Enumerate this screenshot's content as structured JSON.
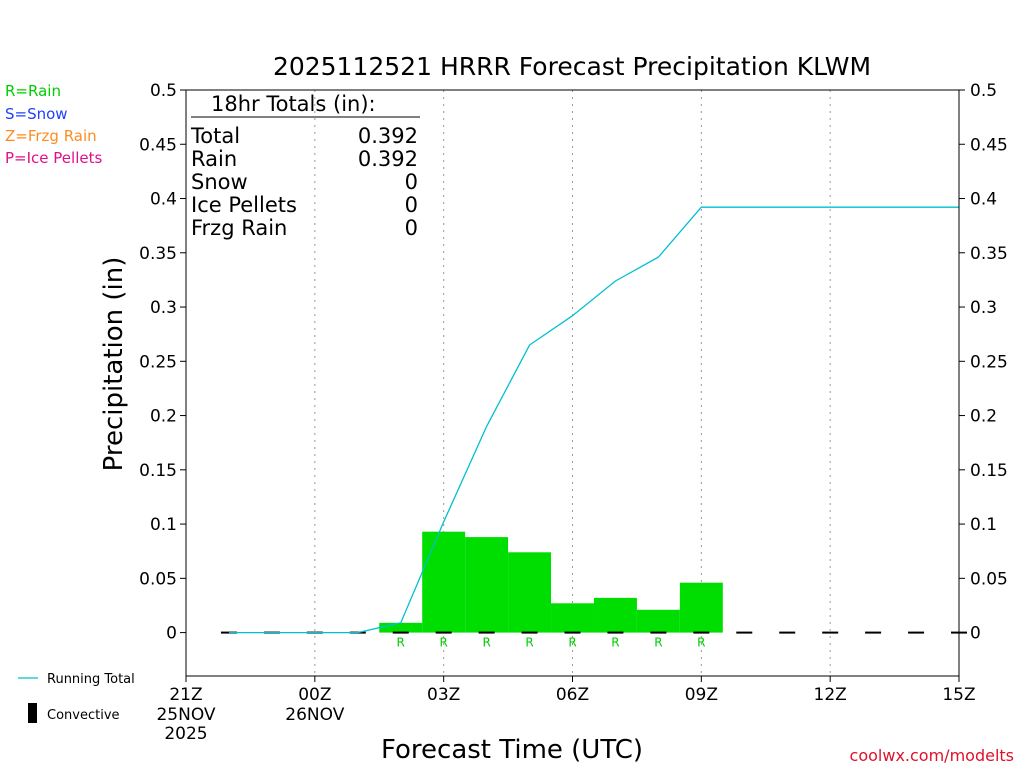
{
  "chart_data": {
    "type": "bar",
    "title": "2025112521 HRRR Forecast Precipitation KLWM",
    "xlabel": "Forecast Time (UTC)",
    "ylabel": "Precipitation (in)",
    "ylim": [
      -0.04,
      0.5
    ],
    "yticks": [
      "0",
      "0.05",
      "0.1",
      "0.15",
      "0.2",
      "0.25",
      "0.3",
      "0.35",
      "0.4",
      "0.45",
      "0.5"
    ],
    "ytick_values": [
      0,
      0.05,
      0.1,
      0.15,
      0.2,
      0.25,
      0.3,
      0.35,
      0.4,
      0.45,
      0.5
    ],
    "xlim_hours": [
      0,
      18
    ],
    "xticks": [
      {
        "hour": 0,
        "label": "21Z",
        "sub1": "25NOV",
        "sub2": "2025"
      },
      {
        "hour": 3,
        "label": "00Z",
        "sub1": "26NOV",
        "sub2": ""
      },
      {
        "hour": 6,
        "label": "03Z",
        "sub1": "",
        "sub2": ""
      },
      {
        "hour": 9,
        "label": "06Z",
        "sub1": "",
        "sub2": ""
      },
      {
        "hour": 12,
        "label": "09Z",
        "sub1": "",
        "sub2": ""
      },
      {
        "hour": 15,
        "label": "12Z",
        "sub1": "",
        "sub2": ""
      },
      {
        "hour": 18,
        "label": "15Z",
        "sub1": "",
        "sub2": ""
      }
    ],
    "grid": "vertical dotted at tick positions",
    "bars": [
      {
        "hour": 5,
        "value": 0.009,
        "type": "R"
      },
      {
        "hour": 6,
        "value": 0.093,
        "type": "R"
      },
      {
        "hour": 7,
        "value": 0.088,
        "type": "R"
      },
      {
        "hour": 8,
        "value": 0.074,
        "type": "R"
      },
      {
        "hour": 9,
        "value": 0.027,
        "type": "R"
      },
      {
        "hour": 10,
        "value": 0.032,
        "type": "R"
      },
      {
        "hour": 11,
        "value": 0.021,
        "type": "R"
      },
      {
        "hour": 12,
        "value": 0.046,
        "type": "R"
      }
    ],
    "running_total": {
      "name": "Running Total",
      "color": "#00c0d0",
      "x": [
        1,
        2,
        3,
        4,
        5,
        6,
        7,
        8,
        9,
        10,
        11,
        12,
        13,
        14,
        15,
        16,
        17,
        18
      ],
      "y": [
        0,
        0,
        0,
        0,
        0.009,
        0.102,
        0.19,
        0.265,
        0.292,
        0.324,
        0.346,
        0.392,
        0.392,
        0.392,
        0.392,
        0.392,
        0.392,
        0.392
      ]
    },
    "convective": {
      "name": "Convective",
      "hours": [
        1,
        2,
        3,
        4,
        5,
        6,
        7,
        8,
        9,
        10,
        11,
        12,
        13,
        14,
        15,
        16,
        17,
        18
      ],
      "values": [
        0,
        0,
        0,
        0,
        0,
        0,
        0,
        0,
        0,
        0,
        0,
        0,
        0,
        0,
        0,
        0,
        0,
        0
      ]
    },
    "bar_color": "#00dd00",
    "totals_box": {
      "header": "18hr Totals (in):",
      "rows": [
        {
          "label": "Total",
          "value": "0.392"
        },
        {
          "label": "Rain",
          "value": "0.392"
        },
        {
          "label": "Snow",
          "value": "0"
        },
        {
          "label": "Ice Pellets",
          "value": "0"
        },
        {
          "label": "Frzg Rain",
          "value": "0"
        }
      ]
    },
    "ptype_legend": [
      {
        "text": "R=Rain",
        "color": "#00cc00"
      },
      {
        "text": "S=Snow",
        "color": "#2040ff"
      },
      {
        "text": "Z=Frzg Rain",
        "color": "#ff8c20"
      },
      {
        "text": "P=Ice Pellets",
        "color": "#e0108a"
      }
    ],
    "legend": {
      "running_total_label": "Running Total",
      "convective_label": "Convective"
    },
    "credit": "coolwx.com/modelts"
  }
}
